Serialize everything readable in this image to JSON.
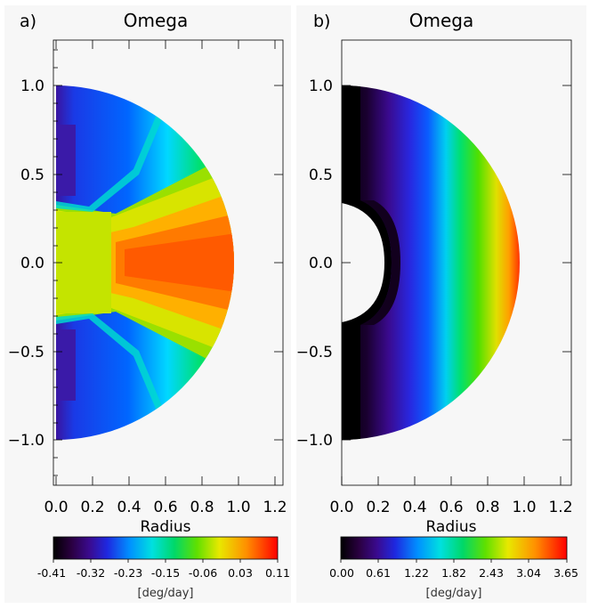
{
  "chart_data": [
    {
      "type": "heatmap",
      "panel_label": "a)",
      "title": "Omega",
      "xlabel": "Radius",
      "xlim": [
        0.0,
        1.2
      ],
      "ylim": [
        -1.2,
        1.2
      ],
      "xticks": [
        "0.0",
        "0.2",
        "0.4",
        "0.6",
        "0.8",
        "1.0",
        "1.2"
      ],
      "yticks": [
        "1.0",
        "0.5",
        "0.0",
        "−0.5",
        "−1.0"
      ],
      "yticks_values": [
        1.0,
        0.5,
        0.0,
        -0.5,
        -1.0
      ],
      "colorbar": {
        "ticks": [
          "-0.41",
          "-0.32",
          "-0.23",
          "-0.15",
          "-0.06",
          "0.03",
          "0.11"
        ],
        "unit": "[deg/day]",
        "colormap": "rainbow"
      },
      "shape": "half-disk r<=1.0",
      "description_values": {
        "equator_outer": 0.11,
        "core_value": -0.06,
        "pole_value": -0.41
      }
    },
    {
      "type": "heatmap",
      "panel_label": "b)",
      "title": "Omega",
      "xlabel": "Radius",
      "xlim": [
        0.0,
        1.2
      ],
      "ylim": [
        -1.2,
        1.2
      ],
      "xticks": [
        "0.0",
        "0.2",
        "0.4",
        "0.6",
        "0.8",
        "1.0",
        "1.2"
      ],
      "yticks": [
        "1.0",
        "0.5",
        "0.0",
        "−0.5",
        "−1.0"
      ],
      "yticks_values": [
        1.0,
        0.5,
        0.0,
        -0.5,
        -1.0
      ],
      "colorbar": {
        "ticks": [
          "0.00",
          "0.61",
          "1.22",
          "1.82",
          "2.43",
          "3.04",
          "3.65"
        ],
        "unit": "[deg/day]",
        "colormap": "rainbow"
      },
      "shape": "half-disk r<=1.0",
      "description_values": {
        "min": 0.0,
        "max": 3.65
      }
    }
  ],
  "colors": {
    "rainbow": [
      "#000000",
      "#3a0a6e",
      "#2626d6",
      "#0080ff",
      "#00e5e5",
      "#00e070",
      "#7fe000",
      "#e6e600",
      "#ffa000",
      "#ff2a00",
      "#ff0000"
    ]
  }
}
